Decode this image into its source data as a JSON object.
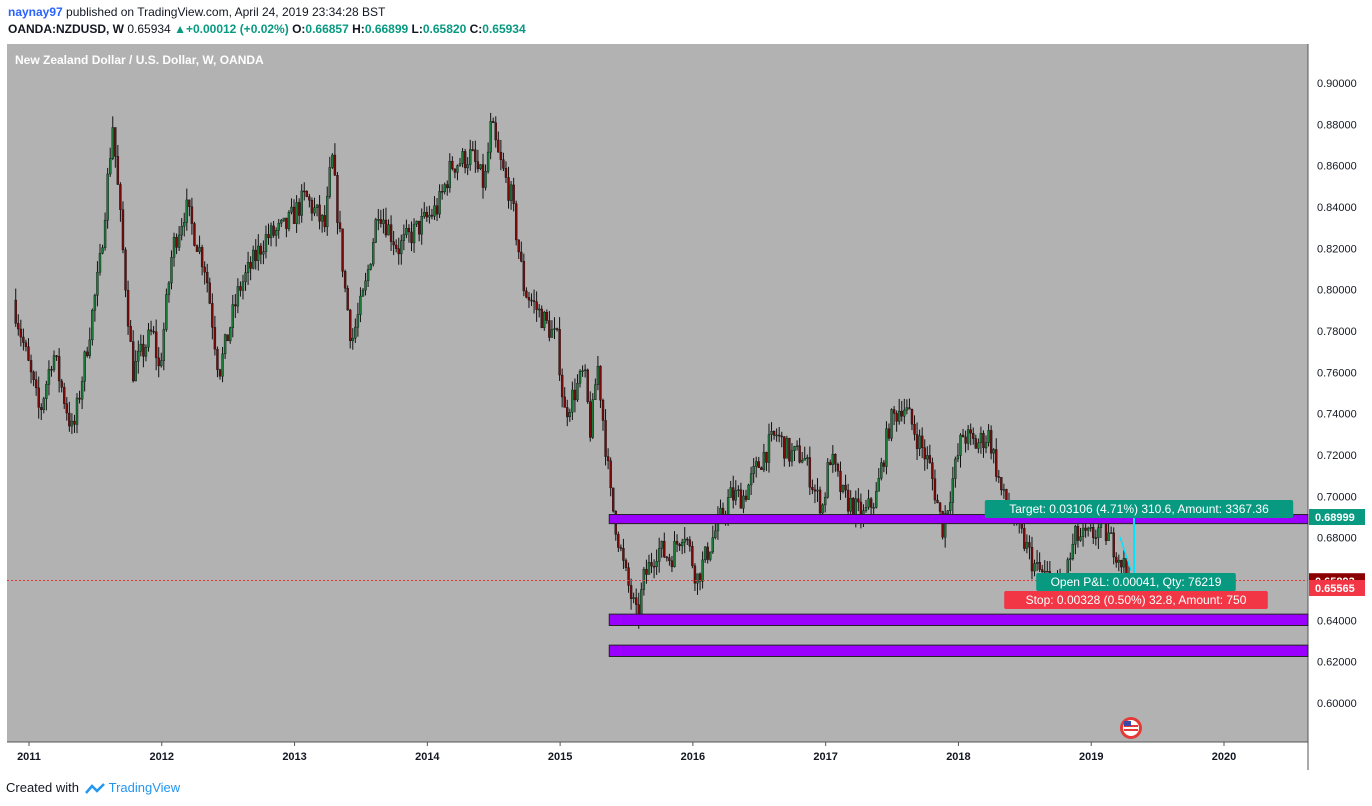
{
  "header": {
    "author": "naynay97",
    "published_text": "published on TradingView.com, April 24, 2019 23:34:28 BST",
    "symbol": "OANDA:NZDUSD, W",
    "last": "0.65934",
    "change": "+0.00012 (+0.02%)",
    "open_label": "O:",
    "open_value": "0.66857",
    "high_label": "H:",
    "high_value": "0.66899",
    "low_label": "L:",
    "low_value": "0.65820",
    "close_label": "C:",
    "close_value": "0.65934"
  },
  "chart": {
    "title": "New Zealand Dollar / U.S. Dollar, W, OANDA",
    "background": "#b2b2b2",
    "zone_color": "#9b00ff",
    "up_color": "#26a69a",
    "down_color": "#8b0000"
  },
  "chart_data": {
    "type": "candlestick",
    "title": "New Zealand Dollar / U.S. Dollar, W, OANDA",
    "x_ticks": [
      "2011",
      "2012",
      "2013",
      "2014",
      "2015",
      "2016",
      "2017",
      "2018",
      "2019",
      "2020"
    ],
    "y_ticks": [
      "0.90000",
      "0.88000",
      "0.86000",
      "0.84000",
      "0.82000",
      "0.80000",
      "0.78000",
      "0.76000",
      "0.74000",
      "0.72000",
      "0.70000",
      "0.68000",
      "0.64000",
      "0.62000",
      "0.60000"
    ],
    "ylim": [
      0.58,
      0.91
    ],
    "price_path": [
      [
        2010.9,
        0.795
      ],
      [
        2011.1,
        0.74
      ],
      [
        2011.2,
        0.77
      ],
      [
        2011.35,
        0.73
      ],
      [
        2011.55,
        0.81
      ],
      [
        2011.65,
        0.88
      ],
      [
        2011.8,
        0.76
      ],
      [
        2011.95,
        0.78
      ],
      [
        2012.0,
        0.76
      ],
      [
        2012.1,
        0.82
      ],
      [
        2012.2,
        0.84
      ],
      [
        2012.35,
        0.81
      ],
      [
        2012.45,
        0.76
      ],
      [
        2012.6,
        0.8
      ],
      [
        2012.8,
        0.825
      ],
      [
        2012.95,
        0.83
      ],
      [
        2013.1,
        0.845
      ],
      [
        2013.25,
        0.83
      ],
      [
        2013.3,
        0.865
      ],
      [
        2013.4,
        0.8
      ],
      [
        2013.45,
        0.775
      ],
      [
        2013.55,
        0.8
      ],
      [
        2013.65,
        0.84
      ],
      [
        2013.8,
        0.82
      ],
      [
        2013.95,
        0.83
      ],
      [
        2014.1,
        0.84
      ],
      [
        2014.2,
        0.86
      ],
      [
        2014.35,
        0.865
      ],
      [
        2014.45,
        0.85
      ],
      [
        2014.5,
        0.88
      ],
      [
        2014.55,
        0.865
      ],
      [
        2014.65,
        0.845
      ],
      [
        2014.75,
        0.8
      ],
      [
        2014.9,
        0.785
      ],
      [
        2015.0,
        0.775
      ],
      [
        2015.05,
        0.74
      ],
      [
        2015.2,
        0.76
      ],
      [
        2015.25,
        0.73
      ],
      [
        2015.3,
        0.765
      ],
      [
        2015.4,
        0.7
      ],
      [
        2015.5,
        0.665
      ],
      [
        2015.6,
        0.64
      ],
      [
        2015.65,
        0.66
      ],
      [
        2015.75,
        0.675
      ],
      [
        2015.85,
        0.67
      ],
      [
        2015.95,
        0.685
      ],
      [
        2016.05,
        0.66
      ],
      [
        2016.2,
        0.685
      ],
      [
        2016.3,
        0.7
      ],
      [
        2016.4,
        0.7
      ],
      [
        2016.55,
        0.72
      ],
      [
        2016.65,
        0.73
      ],
      [
        2016.75,
        0.72
      ],
      [
        2016.85,
        0.72
      ],
      [
        2016.95,
        0.7
      ],
      [
        2017.0,
        0.695
      ],
      [
        2017.05,
        0.72
      ],
      [
        2017.15,
        0.7
      ],
      [
        2017.3,
        0.69
      ],
      [
        2017.4,
        0.7
      ],
      [
        2017.5,
        0.735
      ],
      [
        2017.55,
        0.74
      ],
      [
        2017.6,
        0.745
      ],
      [
        2017.7,
        0.73
      ],
      [
        2017.8,
        0.715
      ],
      [
        2017.9,
        0.685
      ],
      [
        2017.95,
        0.7
      ],
      [
        2018.05,
        0.73
      ],
      [
        2018.15,
        0.725
      ],
      [
        2018.25,
        0.73
      ],
      [
        2018.35,
        0.7
      ],
      [
        2018.5,
        0.68
      ],
      [
        2018.6,
        0.665
      ],
      [
        2018.7,
        0.66
      ],
      [
        2018.8,
        0.655
      ],
      [
        2018.9,
        0.68
      ],
      [
        2019.0,
        0.68
      ],
      [
        2019.1,
        0.685
      ],
      [
        2019.2,
        0.675
      ],
      [
        2019.3,
        0.662
      ]
    ],
    "zones": [
      {
        "name": "resistance",
        "from": 0.6868,
        "to": 0.6912,
        "start_x": 2015.37
      },
      {
        "name": "support",
        "from": 0.6375,
        "to": 0.643,
        "start_x": 2015.37
      },
      {
        "name": "lower-support",
        "from": 0.6225,
        "to": 0.628,
        "start_x": 2015.37
      }
    ],
    "current_price_line": 0.6593,
    "position": {
      "target_label": "Target: 0.03106 (4.71%) 310.6, Amount: 3367.36",
      "pnl_label": "Open P&L: 0.00041, Qty: 76219",
      "stop_label": "Stop: 0.00328 (0.50%) 32.8, Amount: 750",
      "target_price": "0.68999",
      "stop_price": "0.65565",
      "current_price_tag": "0.65893"
    },
    "grid": false
  },
  "footer": {
    "created_with": "Created with",
    "brand": "TradingView"
  }
}
